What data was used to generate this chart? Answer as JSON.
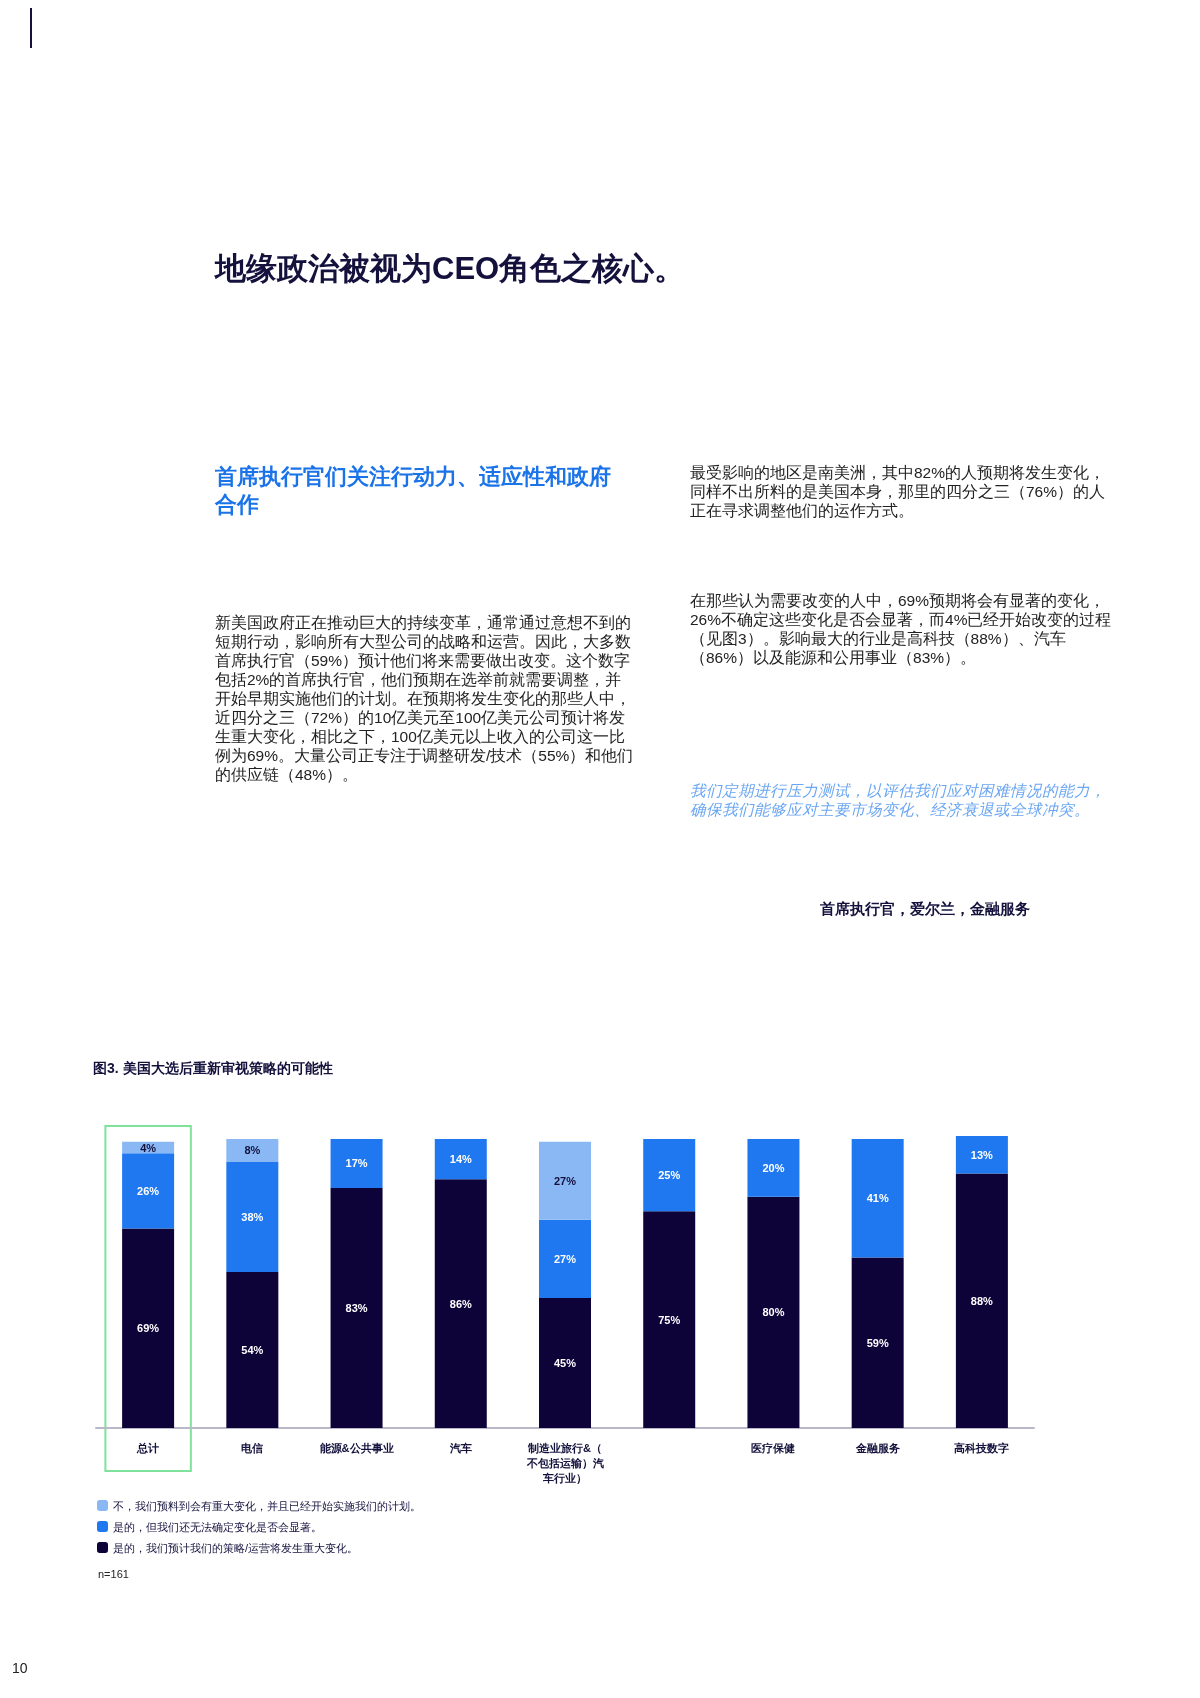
{
  "chart_data": {
    "type": "bar",
    "stacked": true,
    "title": "图3. 美国大选后重新审视策略的可能性",
    "categories": [
      "总计",
      "电信",
      "能源&公共事业",
      "汽车",
      "制造业旅行&（不包括运输）汽车行业）",
      null,
      "医疗保健",
      "金融服务",
      "高科技数字"
    ],
    "series": [
      {
        "name": "是的，我们预计我们的策略/运营将发生重大变化。",
        "color": "#0d0339",
        "values": [
          69,
          54,
          83,
          86,
          45,
          75,
          80,
          59,
          88
        ],
        "value_labels": [
          "69%",
          "54%",
          "83%",
          "86%",
          "45%",
          "75%",
          "80%",
          "59%",
          "88%"
        ]
      },
      {
        "name": "是的，但我们还无法确定变化是否会显著。",
        "color": "#1f78f0",
        "values": [
          26,
          38,
          17,
          14,
          27,
          25,
          20,
          41,
          13
        ],
        "value_labels": [
          "26%",
          "38%",
          "17%",
          "14%",
          "27%",
          "25%",
          "20%",
          "41%",
          "13%"
        ]
      },
      {
        "name": "不，我们预料到会有重大变化，并且已经开始实施我们的计划。",
        "color": "#8ab8f5",
        "values": [
          4,
          8,
          null,
          null,
          27,
          null,
          null,
          null,
          null
        ],
        "value_labels": [
          "4%",
          "8%",
          null,
          null,
          "27%",
          null,
          null,
          null,
          null
        ]
      }
    ],
    "legend": "bottom left",
    "annotations": [
      "地缘政治被视为CEO角色之核心。",
      "首席执行官们关注行动力、适应性和政府合作",
      "新美国政府正在推动巨大的持续变革，通常通过意想不到的短期行动，影响所有大型公司的战略和运营。因此，大多数首席执行官（59%）预计他们将来需要做出改变。这个数字包括2%的首席执行官，他们预期在选举前就需要调整，并开始早期实施他们的计划。在预期将发生变化的那些人中，近四分之三（72%）的10亿美元至100亿美元公司预计将发生重大变化，相比之下，100亿美元以上收入的公司这一比例为69%。大量公司正专注于调整研发/技术（55%）和他们的供应链（48%）。",
      "最受影响的地区是南美洲，其中82%的人预期将发生变化，同样不出所料的是美国本身，那里的四分之三（76%）的人正在寻求调整他们的运作方式。",
      "在那些认为需要改变的人中，69%预期将会有显著的变化，26%不确定这些变化是否会显著，而4%已经开始改变的过程（见图3）。影响最大的行业是高科技（88%）、汽车（86%）以及能源和公用事业（83%）。",
      "我们定期进行压力测试，以评估我们应对困难情况的能力，确保我们能够应对主要市场变化、经济衰退或全球冲突。",
      "首席执行官，爱尔兰，金融服务",
      "n=161",
      "10"
    ]
  }
}
